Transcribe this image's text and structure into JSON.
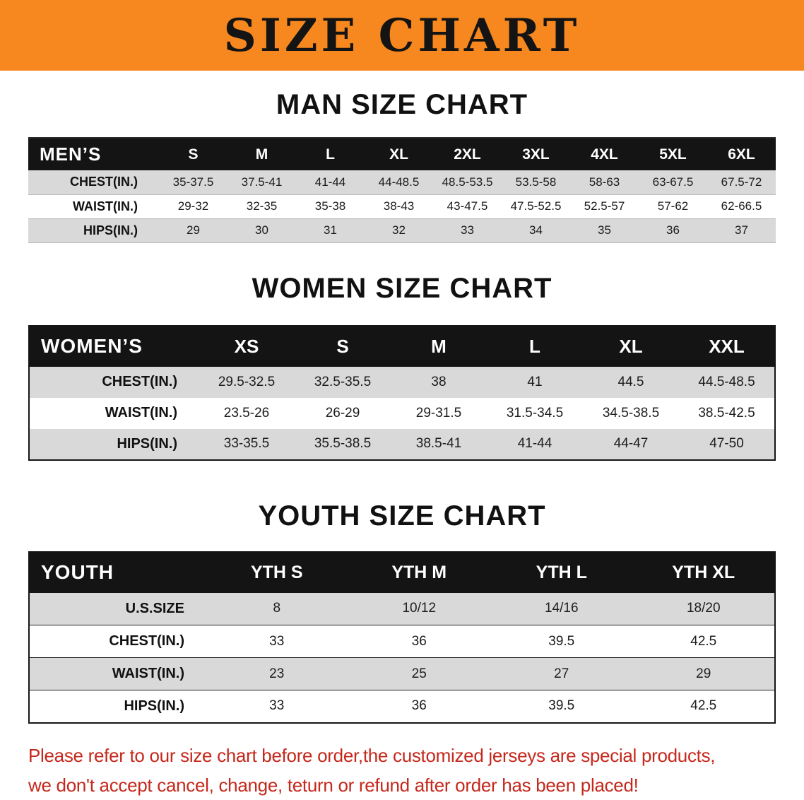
{
  "banner": {
    "title": "SIZE CHART",
    "bg_color": "#f6881f",
    "text_color": "#141414"
  },
  "sections": [
    {
      "id": "men",
      "title": "MAN SIZE CHART",
      "table": {
        "header": [
          "MEN’S",
          "S",
          "M",
          "L",
          "XL",
          "2XL",
          "3XL",
          "4XL",
          "5XL",
          "6XL"
        ],
        "rows": [
          [
            "CHEST(IN.)",
            "35-37.5",
            "37.5-41",
            "41-44",
            "44-48.5",
            "48.5-53.5",
            "53.5-58",
            "58-63",
            "63-67.5",
            "67.5-72"
          ],
          [
            "WAIST(IN.)",
            "29-32",
            "32-35",
            "35-38",
            "38-43",
            "43-47.5",
            "47.5-52.5",
            "52.5-57",
            "57-62",
            "62-66.5"
          ],
          [
            "HIPS(IN.)",
            "29",
            "30",
            "31",
            "32",
            "33",
            "34",
            "35",
            "36",
            "37"
          ]
        ]
      }
    },
    {
      "id": "women",
      "title": "WOMEN SIZE CHART",
      "table": {
        "header": [
          "WOMEN’S",
          "XS",
          "S",
          "M",
          "L",
          "XL",
          "XXL"
        ],
        "rows": [
          [
            "CHEST(IN.)",
            "29.5-32.5",
            "32.5-35.5",
            "38",
            "41",
            "44.5",
            "44.5-48.5"
          ],
          [
            "WAIST(IN.)",
            "23.5-26",
            "26-29",
            "29-31.5",
            "31.5-34.5",
            "34.5-38.5",
            "38.5-42.5"
          ],
          [
            "HIPS(IN.)",
            "33-35.5",
            "35.5-38.5",
            "38.5-41",
            "41-44",
            "44-47",
            "47-50"
          ]
        ]
      }
    },
    {
      "id": "youth",
      "title": "YOUTH SIZE CHART",
      "table": {
        "header": [
          "YOUTH",
          "YTH S",
          "YTH M",
          "YTH L",
          "YTH XL"
        ],
        "rows": [
          [
            "U.S.SIZE",
            "8",
            "10/12",
            "14/16",
            "18/20"
          ],
          [
            "CHEST(IN.)",
            "33",
            "36",
            "39.5",
            "42.5"
          ],
          [
            "WAIST(IN.)",
            "23",
            "25",
            "27",
            "29"
          ],
          [
            "HIPS(IN.)",
            "33",
            "36",
            "39.5",
            "42.5"
          ]
        ]
      }
    }
  ],
  "footer": {
    "lines": [
      "Please refer to our size chart before order,the customized jerseys are special products,",
      "we don't accept cancel, change, teturn or refund after order has been placed!"
    ],
    "text_color": "#c5281c"
  },
  "colors": {
    "header_row_bg": "#141414",
    "stripe_row_bg": "#d9d9d9",
    "banner_orange": "#f6881f",
    "notice_red": "#c5281c"
  }
}
